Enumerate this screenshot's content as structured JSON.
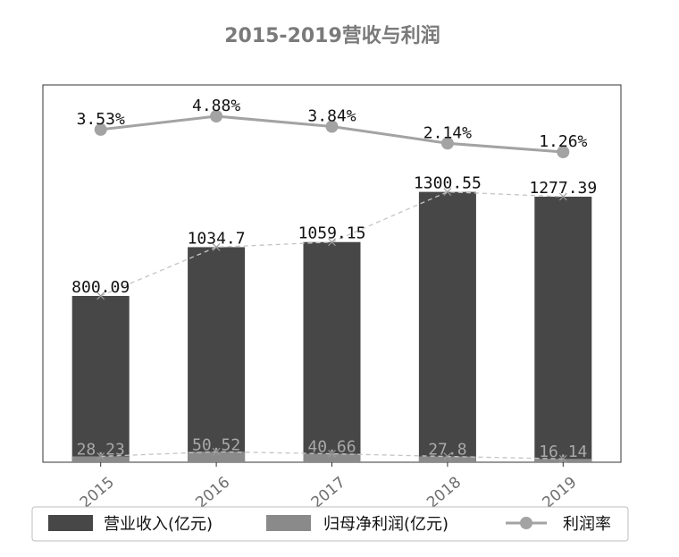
{
  "chart_data": {
    "type": "bar",
    "title": "2015-2019营收与利润",
    "categories": [
      "2015",
      "2016",
      "2017",
      "2018",
      "2019"
    ],
    "series": [
      {
        "name": "营业收入(亿元)",
        "type": "bar",
        "values": [
          800.09,
          1034.7,
          1059.15,
          1300.55,
          1277.39
        ],
        "labels": [
          "800.09",
          "1034.7",
          "1059.15",
          "1300.55",
          "1277.39"
        ],
        "color": "#474747"
      },
      {
        "name": "归母净利润(亿元)",
        "type": "bar",
        "values": [
          28.23,
          50.52,
          40.66,
          27.8,
          16.14
        ],
        "labels": [
          "28.23",
          "50.52",
          "40.66",
          "27.8",
          "16.14"
        ],
        "color": "#8a8a8a"
      },
      {
        "name": "利润率",
        "type": "line",
        "values": [
          3.53,
          4.88,
          3.84,
          2.14,
          1.26
        ],
        "labels": [
          "3.53%",
          "4.88%",
          "3.84%",
          "2.14%",
          "1.26%"
        ],
        "color": "#a3a3a3"
      }
    ],
    "ylim": [
      0,
      1350
    ],
    "grid": false,
    "legend": "bottom"
  }
}
